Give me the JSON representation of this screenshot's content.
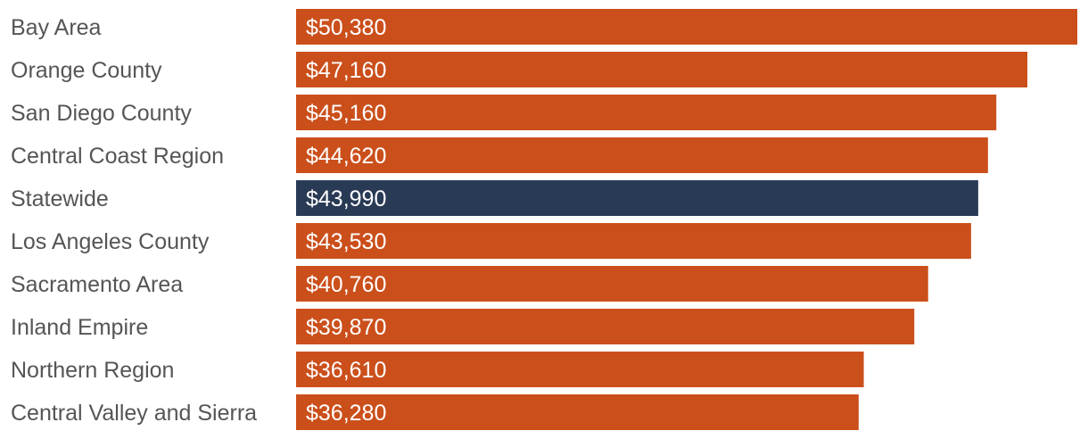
{
  "chart_data": {
    "type": "bar",
    "orientation": "horizontal",
    "categories": [
      "Bay Area",
      "Orange County",
      "San Diego County",
      "Central Coast Region",
      "Statewide",
      "Los Angeles County",
      "Sacramento Area",
      "Inland Empire",
      "Northern Region",
      "Central Valley and Sierra"
    ],
    "values": [
      50380,
      47160,
      45160,
      44620,
      43990,
      43530,
      40760,
      39870,
      36610,
      36280
    ],
    "value_labels": [
      "$50,380",
      "$47,160",
      "$45,160",
      "$44,620",
      "$43,990",
      "$43,530",
      "$40,760",
      "$39,870",
      "$36,610",
      "$36,280"
    ],
    "xlim": [
      0,
      50380
    ],
    "grid": false,
    "legend": "none",
    "colors": {
      "default_bar": "#cb4f1b",
      "highlight_bar": "#293a55",
      "category_text": "#555555",
      "value_text": "#ffffff"
    },
    "highlight_category": "Statewide"
  }
}
